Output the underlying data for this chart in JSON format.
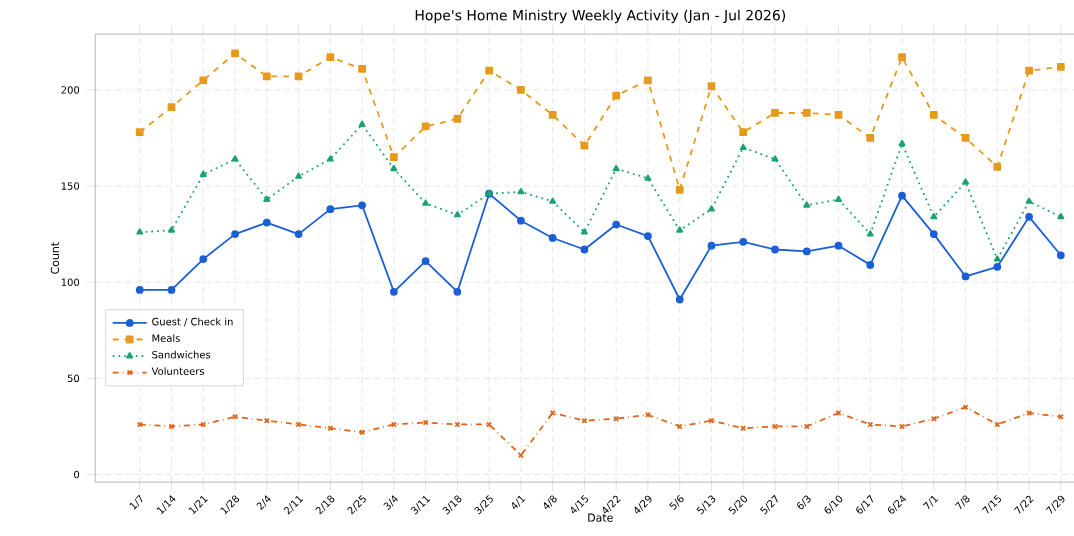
{
  "chart_data": {
    "type": "line",
    "title": "Hope's Home Ministry Weekly Activity (Jan - Jul 2026)",
    "xlabel": "Date",
    "ylabel": "Count",
    "categories": [
      "1/7",
      "1/14",
      "1/21",
      "1/28",
      "2/4",
      "2/11",
      "2/18",
      "2/25",
      "3/4",
      "3/11",
      "3/18",
      "3/25",
      "4/1",
      "4/8",
      "4/15",
      "4/22",
      "4/29",
      "5/6",
      "5/13",
      "5/20",
      "5/27",
      "6/3",
      "6/10",
      "6/17",
      "6/24",
      "7/1",
      "7/8",
      "7/15",
      "7/22",
      "7/29"
    ],
    "series": [
      {
        "name": "Guest / Check in",
        "color": "#1a5fd6",
        "marker": "circle",
        "line_style": "solid",
        "values": [
          96,
          96,
          112,
          125,
          131,
          125,
          138,
          140,
          95,
          111,
          95,
          146,
          132,
          123,
          117,
          130,
          124,
          91,
          119,
          121,
          117,
          116,
          119,
          109,
          145,
          125,
          103,
          108,
          134,
          114
        ]
      },
      {
        "name": "Meals",
        "color": "#e69a1c",
        "marker": "square",
        "line_style": "dashed",
        "values": [
          178,
          191,
          205,
          219,
          207,
          207,
          217,
          211,
          165,
          181,
          185,
          210,
          200,
          187,
          171,
          197,
          205,
          148,
          202,
          178,
          188,
          188,
          187,
          175,
          217,
          187,
          175,
          160,
          210,
          212
        ]
      },
      {
        "name": "Sandwiches",
        "color": "#1aa36f",
        "marker": "triangle",
        "line_style": "dotted",
        "values": [
          126,
          127,
          156,
          164,
          143,
          155,
          164,
          182,
          159,
          141,
          135,
          146,
          147,
          142,
          126,
          159,
          154,
          127,
          138,
          170,
          164,
          140,
          143,
          125,
          172,
          134,
          152,
          112,
          142,
          134
        ]
      },
      {
        "name": "Volunteers",
        "color": "#e0651c",
        "marker": "cross",
        "line_style": "dashdot",
        "values": [
          26,
          25,
          26,
          30,
          28,
          26,
          24,
          22,
          26,
          27,
          26,
          26,
          10,
          32,
          28,
          29,
          31,
          25,
          28,
          24,
          25,
          25,
          32,
          26,
          25,
          29,
          35,
          26,
          32,
          30
        ]
      }
    ],
    "ylim": [
      -4,
      229
    ],
    "yticks": [
      0,
      50,
      100,
      150,
      200
    ],
    "grid": true,
    "legend": "left"
  }
}
